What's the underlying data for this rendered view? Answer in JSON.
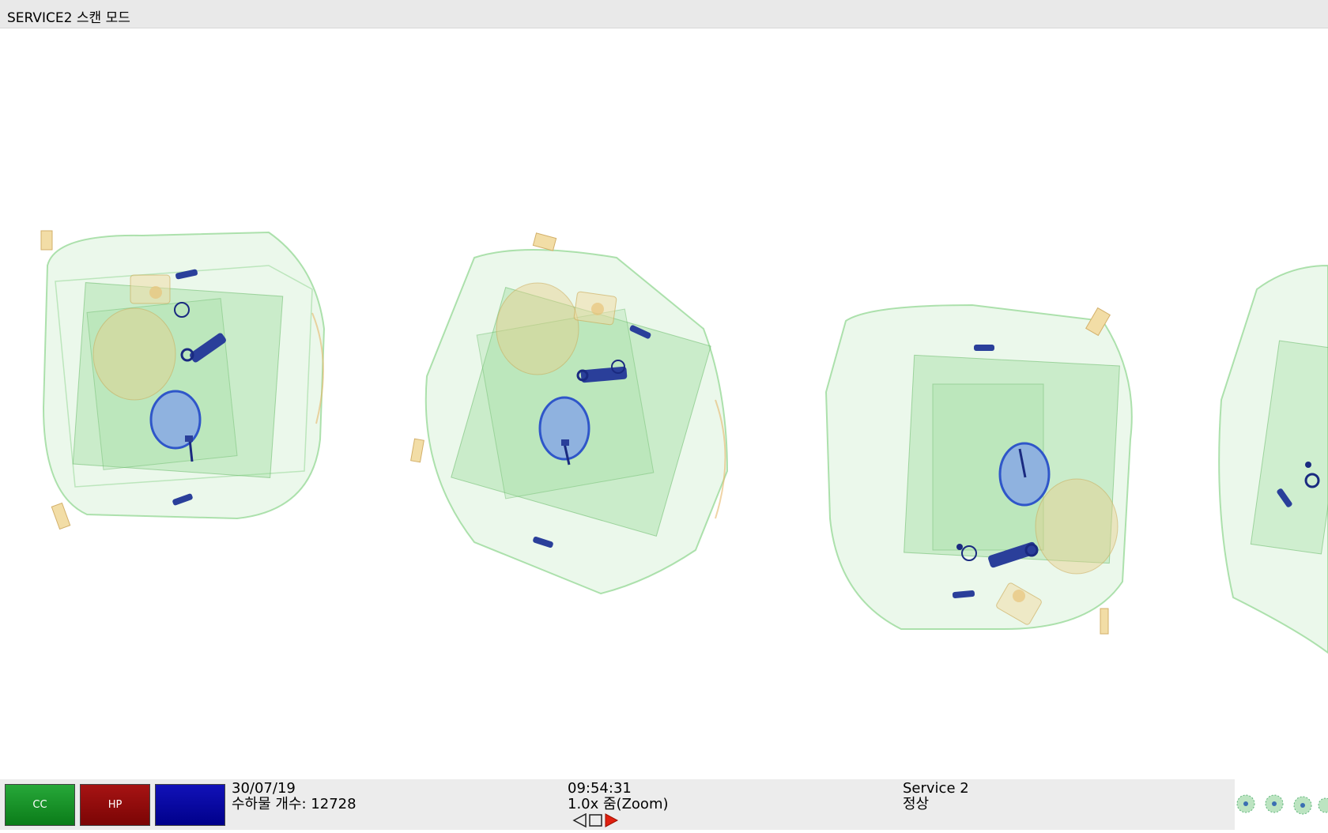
{
  "window": {
    "title": "SERVICE2 스캔 모드"
  },
  "status_bar": {
    "buttons": {
      "cc_label": "CC",
      "hp_label": "HP",
      "blank_label": ""
    },
    "date": "30/07/19",
    "bag_count_label": "수하물 개수: 12728",
    "time": "09:54:31",
    "zoom_label": "1.0x 줌(Zoom)",
    "mode_name": "Service 2",
    "mode_status": "정상"
  },
  "colors": {
    "organic_green": "#6fc46f",
    "metal_blue": "#2a3f9a",
    "inorganic_orange": "#e8b86a",
    "cc_button": "#129224",
    "hp_button": "#8b0b0b",
    "blue_button": "#0a0aa6",
    "nav_arrow_red": "#e02010"
  },
  "icons": {
    "nav_prev": "triangle-left-outline-icon",
    "nav_stop": "square-outline-icon",
    "nav_next": "triangle-right-red-icon"
  }
}
